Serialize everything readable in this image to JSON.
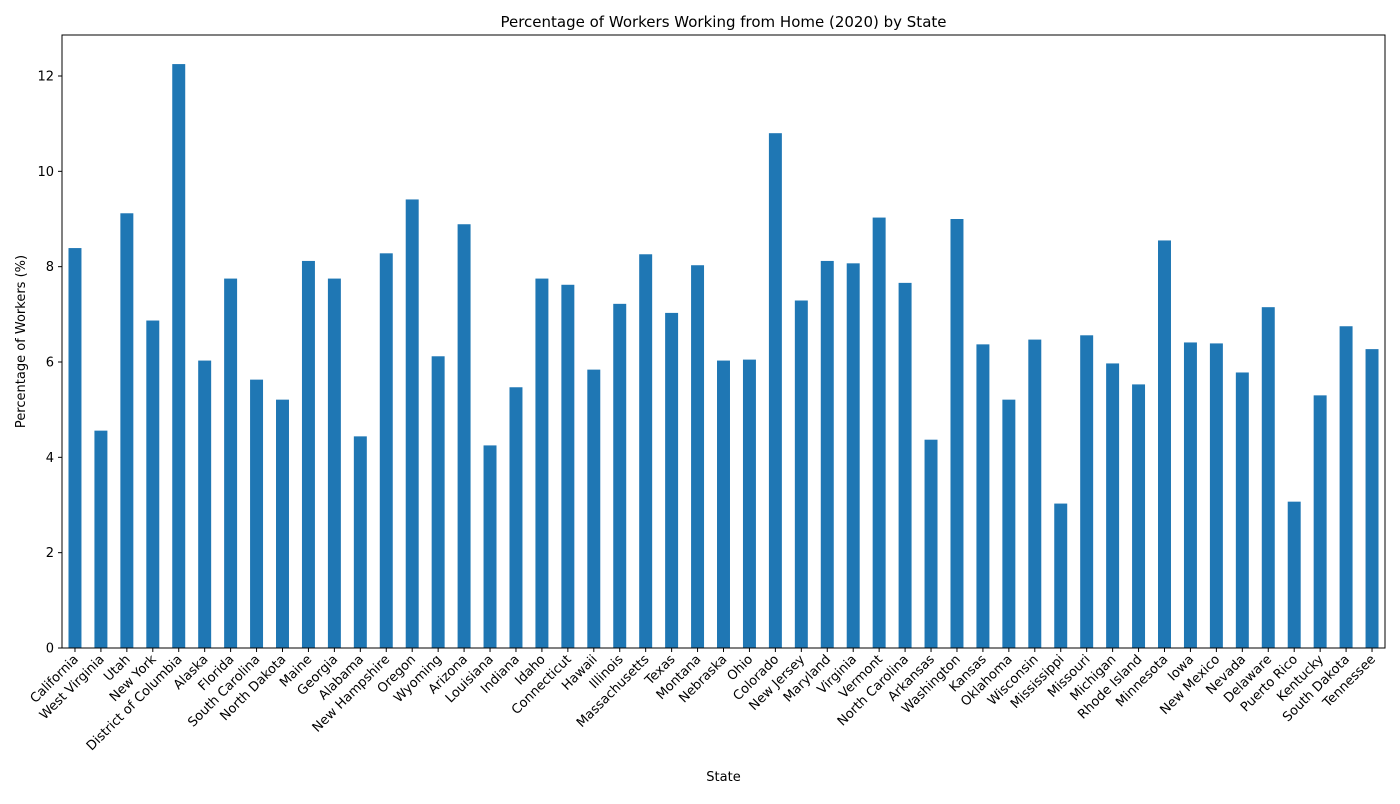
{
  "chart_data": {
    "type": "bar",
    "title": "Percentage of Workers Working from Home (2020) by State",
    "xlabel": "State",
    "ylabel": "Percentage of Workers (%)",
    "ylim": [
      0,
      12.86
    ],
    "yticks": [
      0,
      2,
      4,
      6,
      8,
      10,
      12
    ],
    "grid": false,
    "legend": "none",
    "bar_color": "#1f77b4",
    "categories": [
      "California",
      "West Virginia",
      "Utah",
      "New York",
      "District of Columbia",
      "Alaska",
      "Florida",
      "South Carolina",
      "North Dakota",
      "Maine",
      "Georgia",
      "Alabama",
      "New Hampshire",
      "Oregon",
      "Wyoming",
      "Arizona",
      "Louisiana",
      "Indiana",
      "Idaho",
      "Connecticut",
      "Hawaii",
      "Illinois",
      "Massachusetts",
      "Texas",
      "Montana",
      "Nebraska",
      "Ohio",
      "Colorado",
      "New Jersey",
      "Maryland",
      "Virginia",
      "Vermont",
      "North Carolina",
      "Arkansas",
      "Washington",
      "Kansas",
      "Oklahoma",
      "Wisconsin",
      "Mississippi",
      "Missouri",
      "Michigan",
      "Rhode Island",
      "Minnesota",
      "Iowa",
      "New Mexico",
      "Nevada",
      "Delaware",
      "Puerto Rico",
      "Kentucky",
      "South Dakota",
      "Tennessee"
    ],
    "values": [
      8.39,
      4.56,
      9.12,
      6.87,
      12.25,
      6.03,
      7.75,
      5.63,
      5.21,
      8.12,
      7.75,
      4.44,
      8.28,
      9.41,
      6.12,
      8.89,
      4.25,
      5.47,
      7.75,
      7.62,
      5.84,
      7.22,
      8.26,
      7.03,
      8.03,
      6.03,
      6.05,
      10.8,
      7.29,
      8.12,
      8.07,
      9.03,
      7.66,
      4.37,
      9.0,
      6.37,
      5.21,
      6.47,
      3.03,
      6.56,
      5.97,
      5.53,
      8.55,
      6.41,
      6.39,
      5.78,
      7.15,
      3.07,
      5.3,
      6.75,
      6.27
    ]
  }
}
